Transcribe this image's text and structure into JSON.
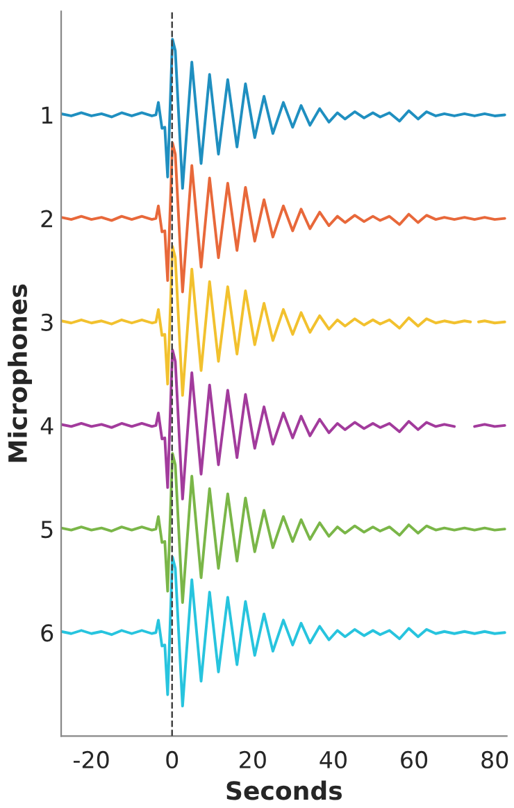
{
  "chart_data": {
    "type": "line",
    "xlabel": "Seconds",
    "ylabel": "Microphones",
    "x": [
      -27.5,
      -25,
      -22.5,
      -20,
      -17.5,
      -15,
      -12.5,
      -10,
      -7.5,
      -5,
      -4,
      -3.4,
      -2.5,
      -1.8,
      -1.1,
      0.1,
      0.8,
      2.6,
      4.9,
      7.2,
      9.3,
      11.5,
      13.8,
      16.1,
      18.2,
      20.5,
      22.8,
      25.0,
      27.6,
      29.9,
      32.0,
      34.2,
      36.6,
      38.9,
      41.0,
      42.9,
      45.3,
      47.6,
      49.8,
      51.6,
      53.9,
      56.4,
      58.7,
      61.0,
      63.1,
      65.4,
      67.5,
      70,
      72.5,
      75,
      77.5,
      80,
      82.5
    ],
    "series": [
      {
        "color": "#1f8fc0",
        "values": [
          0.99,
          1.01,
          0.98,
          1.01,
          0.99,
          1.02,
          0.98,
          1.01,
          0.98,
          1.01,
          1.0,
          0.88,
          1.13,
          1.12,
          1.6,
          0.27,
          0.38,
          1.71,
          0.49,
          1.47,
          0.61,
          1.38,
          0.66,
          1.31,
          0.7,
          1.22,
          0.82,
          1.18,
          0.88,
          1.12,
          0.91,
          1.1,
          0.94,
          1.07,
          0.98,
          1.04,
          0.97,
          1.03,
          0.98,
          1.02,
          0.98,
          1.06,
          0.96,
          1.04,
          0.97,
          1.01,
          0.99,
          1.01,
          0.99,
          1.01,
          0.99,
          1.01,
          1.0
        ]
      },
      {
        "color": "#e8683a",
        "values": [
          1.99,
          2.01,
          1.98,
          2.01,
          1.99,
          2.02,
          1.98,
          2.01,
          1.98,
          2.01,
          2.0,
          1.88,
          2.13,
          2.12,
          2.6,
          1.27,
          1.38,
          2.71,
          1.49,
          2.47,
          1.61,
          2.38,
          1.66,
          2.31,
          1.7,
          2.22,
          1.82,
          2.18,
          1.88,
          2.12,
          1.91,
          2.1,
          1.94,
          2.07,
          1.98,
          2.04,
          1.97,
          2.03,
          1.98,
          2.02,
          1.98,
          2.06,
          1.96,
          2.04,
          1.97,
          2.01,
          1.99,
          2.01,
          1.99,
          2.01,
          1.99,
          2.01,
          2.0
        ]
      },
      {
        "color": "#f2c12e",
        "x": [
          -27.5,
          -25,
          -22.5,
          -20,
          -17.5,
          -15,
          -12.5,
          -10,
          -7.5,
          -5,
          -4,
          -3.4,
          -2.5,
          -1.8,
          -1.1,
          0.1,
          0.8,
          2.6,
          4.9,
          7.2,
          9.3,
          11.5,
          13.8,
          16.1,
          18.2,
          20.5,
          22.8,
          25.0,
          27.6,
          29.9,
          32.0,
          34.2,
          36.6,
          38.9,
          41.0,
          42.9,
          45.3,
          47.6,
          49.8,
          51.6,
          53.9,
          56.4,
          58.7,
          61.0,
          63.1,
          65.4,
          67.5,
          70,
          72.5,
          74,
          75,
          76,
          77.5,
          80,
          82.5
        ],
        "values": [
          2.99,
          3.01,
          2.98,
          3.01,
          2.99,
          3.02,
          2.98,
          3.01,
          2.98,
          3.01,
          3.0,
          2.88,
          3.13,
          3.12,
          3.6,
          2.27,
          2.38,
          3.71,
          2.49,
          3.47,
          2.61,
          3.38,
          2.66,
          3.31,
          2.7,
          3.22,
          2.82,
          3.18,
          2.88,
          3.12,
          2.91,
          3.1,
          2.94,
          3.07,
          2.98,
          3.04,
          2.97,
          3.03,
          2.98,
          3.02,
          2.98,
          3.06,
          2.96,
          3.04,
          2.97,
          3.01,
          2.99,
          3.01,
          2.99,
          3.0,
          null,
          3.0,
          2.99,
          3.01,
          3.0
        ]
      },
      {
        "color": "#a23b9c",
        "values": [
          3.99,
          4.01,
          3.98,
          4.01,
          3.99,
          4.02,
          3.98,
          4.01,
          3.98,
          4.01,
          4.0,
          3.88,
          4.13,
          4.12,
          4.6,
          3.27,
          3.38,
          4.71,
          3.49,
          4.47,
          3.61,
          4.38,
          3.66,
          4.31,
          3.7,
          4.22,
          3.82,
          4.18,
          3.88,
          4.12,
          3.91,
          4.1,
          3.94,
          4.07,
          3.98,
          4.04,
          3.97,
          4.03,
          3.98,
          4.02,
          3.98,
          4.06,
          3.96,
          4.04,
          3.97,
          4.01,
          3.99,
          4.01,
          null,
          4.01,
          3.99,
          4.01,
          4.0
        ]
      },
      {
        "color": "#7ab648",
        "values": [
          4.99,
          5.01,
          4.98,
          5.01,
          4.99,
          5.02,
          4.98,
          5.01,
          4.98,
          5.01,
          5.0,
          4.88,
          5.13,
          5.12,
          5.6,
          4.27,
          4.38,
          5.71,
          4.49,
          5.47,
          4.61,
          5.38,
          4.66,
          5.31,
          4.7,
          5.22,
          4.82,
          5.18,
          4.88,
          5.12,
          4.91,
          5.1,
          4.94,
          5.07,
          4.98,
          5.04,
          4.97,
          5.03,
          4.98,
          5.02,
          4.98,
          5.06,
          4.96,
          5.04,
          4.97,
          5.01,
          4.99,
          5.01,
          4.99,
          5.01,
          4.99,
          5.01,
          5.0
        ]
      },
      {
        "color": "#27c4de",
        "values": [
          5.99,
          6.01,
          5.98,
          6.01,
          5.99,
          6.02,
          5.98,
          6.01,
          5.98,
          6.01,
          6.0,
          5.88,
          6.13,
          6.12,
          6.6,
          5.27,
          5.38,
          6.71,
          5.49,
          6.47,
          5.61,
          6.38,
          5.66,
          6.31,
          5.7,
          6.22,
          5.82,
          6.18,
          5.88,
          6.12,
          5.91,
          6.1,
          5.94,
          6.07,
          5.98,
          6.04,
          5.97,
          6.03,
          5.98,
          6.02,
          5.98,
          6.06,
          5.96,
          6.04,
          5.97,
          6.01,
          5.99,
          6.01,
          5.99,
          6.01,
          5.99,
          6.01,
          6.0
        ]
      }
    ],
    "xlim": [
      -27.5,
      83
    ],
    "xticks": [
      -20,
      0,
      20,
      40,
      60,
      80
    ],
    "ylim": [
      7,
      0
    ],
    "yticks": [
      1,
      2,
      3,
      4,
      5,
      6
    ],
    "ref_lines": [
      {
        "axis": "x",
        "value": 0,
        "color": "#444444",
        "line_style": "dashed"
      }
    ],
    "grid": false,
    "legend": false
  }
}
